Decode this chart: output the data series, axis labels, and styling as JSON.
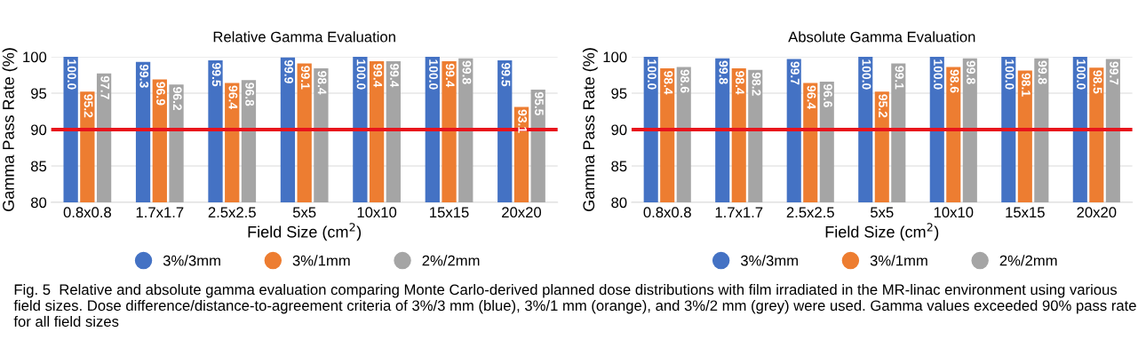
{
  "chart_data": [
    {
      "type": "bar",
      "title": "Relative Gamma Evaluation",
      "xlabel": "Field Size (cm$^{2}$)",
      "ylabel": "Gamma Pass Rate (%)",
      "categories": [
        "0.8x0.8",
        "1.7x1.7",
        "2.5x2.5",
        "5x5",
        "10x10",
        "15x15",
        "20x20"
      ],
      "series": [
        {
          "name": "3%/3mm",
          "color": "#4472c4",
          "values": [
            100,
            99.3,
            99.5,
            99.9,
            100,
            100,
            99.5
          ],
          "value_labels": [
            "100.0",
            "99.3",
            "99.5",
            "99.9",
            "100.0",
            "100.0",
            "99.5"
          ]
        },
        {
          "name": "3%/1mm",
          "color": "#ed7d31",
          "values": [
            95.2,
            96.9,
            96.4,
            99.1,
            99.4,
            99.4,
            93.1
          ],
          "value_labels": [
            "95.2",
            "96.9",
            "96.4",
            "99.1",
            "99.4",
            "99.4",
            "93.1"
          ]
        },
        {
          "name": "2%/2mm",
          "color": "#a5a5a5",
          "values": [
            97.7,
            96.2,
            96.8,
            98.4,
            99.4,
            99.8,
            95.5
          ],
          "value_labels": [
            "97.7",
            "96.2",
            "96.8",
            "98.4",
            "99.4",
            "99.8",
            "95.5"
          ]
        }
      ],
      "ylim": [
        80,
        100
      ],
      "yticks": [
        80,
        85,
        90,
        95,
        100
      ],
      "grid": "y",
      "legend": "bottom",
      "ref_lines": [
        {
          "axis": "y",
          "value": 90,
          "color": "#e8141c"
        }
      ],
      "annotations": [
        "Fig. 5  Relative and absolute gamma evaluation comparing Monte Carlo-derived planned dose distributions with film irradiated in the MR-linac environment using various field sizes. Dose difference/distance-to-agreement criteria of 3%/3 mm (blue), 3%/1 mm (orange), and 3%/2 mm (grey) were used. Gamma values exceeded 90% pass rate for all field sizes"
      ]
    },
    {
      "type": "bar",
      "title": "Absolute Gamma Evaluation",
      "xlabel": "Field Size (cm$^{2}$)",
      "ylabel": "Gamma Pass Rate (%)",
      "categories": [
        "0.8x0.8",
        "1.7x1.7",
        "2.5x2.5",
        "5x5",
        "10x10",
        "15x15",
        "20x20"
      ],
      "series": [
        {
          "name": "3%/3mm",
          "color": "#4472c4",
          "values": [
            100,
            99.8,
            99.7,
            100,
            100,
            100,
            100
          ],
          "value_labels": [
            "100.0",
            "99.8",
            "99.7",
            "100.0",
            "100.0",
            "100.0",
            "100.0"
          ]
        },
        {
          "name": "3%/1mm",
          "color": "#ed7d31",
          "values": [
            98.4,
            98.4,
            96.4,
            95.2,
            98.6,
            98.1,
            98.5
          ],
          "value_labels": [
            "98.4",
            "98.4",
            "96.4",
            "95.2",
            "98.6",
            "98.1",
            "98.5"
          ]
        },
        {
          "name": "2%/2mm",
          "color": "#a5a5a5",
          "values": [
            98.6,
            98.2,
            96.6,
            99.1,
            99.8,
            99.8,
            99.7
          ],
          "value_labels": [
            "98.6",
            "98.2",
            "96.6",
            "99.1",
            "99.8",
            "99.8",
            "99.7"
          ]
        }
      ],
      "ylim": [
        80,
        100
      ],
      "yticks": [
        80,
        85,
        90,
        95,
        100
      ],
      "grid": "y",
      "legend": "bottom",
      "ref_lines": [
        {
          "axis": "y",
          "value": 90,
          "color": "#e8141c"
        }
      ]
    }
  ]
}
